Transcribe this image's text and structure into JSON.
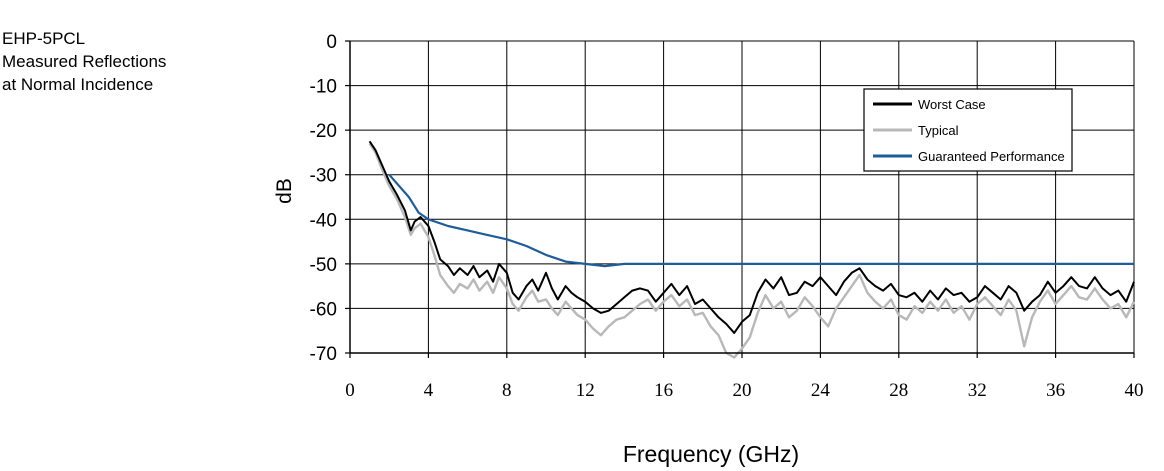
{
  "caption": {
    "line1": "EHP-5PCL",
    "line2": "Measured Reflections",
    "line3": "at Normal Incidence"
  },
  "chart_data": {
    "type": "line",
    "xlabel": "Frequency (GHz)",
    "ylabel": "dB",
    "xlim": [
      0,
      40
    ],
    "ylim": [
      -70,
      0
    ],
    "x_ticks": [
      0,
      4,
      8,
      12,
      16,
      20,
      24,
      28,
      32,
      36,
      40
    ],
    "y_ticks": [
      0,
      -10,
      -20,
      -30,
      -40,
      -50,
      -60,
      -70
    ],
    "x_tick_labels": [
      "0",
      "4",
      "8",
      "12",
      "16",
      "20",
      "24",
      "28",
      "32",
      "36",
      "40"
    ],
    "y_tick_labels": [
      "0",
      "-10",
      "-20",
      "-30",
      "-40",
      "-50",
      "-60",
      "-70"
    ],
    "grid": true,
    "legend_position": "top-right",
    "series": [
      {
        "name": "Worst Case",
        "color": "#000000",
        "x": [
          1.0,
          1.3,
          1.6,
          2.0,
          2.4,
          2.8,
          3.1,
          3.3,
          3.6,
          4.0,
          4.3,
          4.6,
          5.0,
          5.3,
          5.6,
          6.0,
          6.3,
          6.6,
          7.0,
          7.3,
          7.6,
          8.0,
          8.3,
          8.6,
          9.0,
          9.3,
          9.6,
          10.0,
          10.3,
          10.6,
          11.0,
          11.3,
          11.6,
          12.0,
          12.4,
          12.8,
          13.2,
          13.6,
          14.0,
          14.4,
          14.8,
          15.2,
          15.6,
          16.0,
          16.4,
          16.8,
          17.2,
          17.6,
          18.0,
          18.4,
          18.8,
          19.2,
          19.6,
          20.0,
          20.4,
          20.8,
          21.2,
          21.6,
          22.0,
          22.4,
          22.8,
          23.2,
          23.6,
          24.0,
          24.4,
          24.8,
          25.2,
          25.6,
          26.0,
          26.4,
          26.8,
          27.2,
          27.6,
          28.0,
          28.4,
          28.8,
          29.2,
          29.6,
          30.0,
          30.4,
          30.8,
          31.2,
          31.6,
          32.0,
          32.4,
          32.8,
          33.2,
          33.6,
          34.0,
          34.4,
          34.8,
          35.2,
          35.6,
          36.0,
          36.4,
          36.8,
          37.2,
          37.6,
          38.0,
          38.4,
          38.8,
          39.2,
          39.6,
          40.0
        ],
        "y": [
          -22.5,
          -24.5,
          -27.5,
          -31.5,
          -34.5,
          -38.0,
          -42.5,
          -40.5,
          -39.5,
          -41.5,
          -45.0,
          -49.0,
          -50.5,
          -52.5,
          -51.0,
          -52.5,
          -50.5,
          -53.0,
          -51.5,
          -54.0,
          -50.0,
          -52.0,
          -56.5,
          -58.0,
          -55.0,
          -53.5,
          -56.0,
          -52.0,
          -55.5,
          -58.0,
          -55.0,
          -56.5,
          -57.5,
          -58.5,
          -60.0,
          -61.0,
          -60.5,
          -59.0,
          -57.5,
          -56.0,
          -55.5,
          -56.0,
          -58.5,
          -56.5,
          -54.5,
          -57.0,
          -55.0,
          -59.0,
          -58.0,
          -60.0,
          -62.0,
          -63.5,
          -65.5,
          -63.0,
          -61.5,
          -56.5,
          -53.5,
          -55.5,
          -53.0,
          -57.0,
          -56.5,
          -54.0,
          -55.0,
          -53.0,
          -55.0,
          -57.0,
          -54.0,
          -52.0,
          -51.0,
          -53.5,
          -55.0,
          -56.0,
          -54.5,
          -57.0,
          -57.5,
          -56.5,
          -58.5,
          -56.0,
          -58.0,
          -55.5,
          -57.0,
          -56.5,
          -58.5,
          -57.5,
          -55.0,
          -56.5,
          -58.0,
          -55.0,
          -56.5,
          -60.5,
          -58.5,
          -57.0,
          -54.0,
          -56.5,
          -55.0,
          -53.0,
          -55.0,
          -55.5,
          -53.0,
          -55.5,
          -57.0,
          -56.0,
          -58.5,
          -54.0
        ]
      },
      {
        "name": "Typical",
        "color": "#b8b8b8",
        "x": [
          1.0,
          1.3,
          1.6,
          2.0,
          2.4,
          2.8,
          3.1,
          3.3,
          3.6,
          4.0,
          4.3,
          4.6,
          5.0,
          5.3,
          5.6,
          6.0,
          6.3,
          6.6,
          7.0,
          7.3,
          7.6,
          8.0,
          8.3,
          8.6,
          9.0,
          9.3,
          9.6,
          10.0,
          10.3,
          10.6,
          11.0,
          11.3,
          11.6,
          12.0,
          12.4,
          12.8,
          13.2,
          13.6,
          14.0,
          14.4,
          14.8,
          15.2,
          15.6,
          16.0,
          16.4,
          16.8,
          17.2,
          17.6,
          18.0,
          18.4,
          18.8,
          19.2,
          19.6,
          20.0,
          20.4,
          20.8,
          21.2,
          21.6,
          22.0,
          22.4,
          22.8,
          23.2,
          23.6,
          24.0,
          24.4,
          24.8,
          25.2,
          25.6,
          26.0,
          26.4,
          26.8,
          27.2,
          27.6,
          28.0,
          28.4,
          28.8,
          29.2,
          29.6,
          30.0,
          30.4,
          30.8,
          31.2,
          31.6,
          32.0,
          32.4,
          32.8,
          33.2,
          33.6,
          34.0,
          34.4,
          34.8,
          35.2,
          35.6,
          36.0,
          36.4,
          36.8,
          37.2,
          37.6,
          38.0,
          38.4,
          38.8,
          39.2,
          39.6,
          40.0
        ],
        "y": [
          -23.0,
          -25.0,
          -28.5,
          -32.5,
          -35.5,
          -39.5,
          -43.5,
          -42.0,
          -41.0,
          -44.0,
          -48.0,
          -52.5,
          -55.0,
          -56.5,
          -54.5,
          -55.5,
          -53.5,
          -56.0,
          -54.0,
          -56.5,
          -53.0,
          -55.5,
          -59.0,
          -60.5,
          -57.5,
          -56.0,
          -58.5,
          -58.0,
          -60.0,
          -61.5,
          -58.5,
          -60.0,
          -61.5,
          -62.5,
          -64.5,
          -66.0,
          -64.0,
          -62.5,
          -62.0,
          -60.5,
          -59.0,
          -58.0,
          -60.5,
          -58.5,
          -57.0,
          -59.5,
          -58.0,
          -61.5,
          -61.0,
          -64.0,
          -66.0,
          -70.0,
          -71.0,
          -69.0,
          -66.5,
          -61.0,
          -57.0,
          -60.0,
          -58.5,
          -62.0,
          -60.5,
          -57.5,
          -59.5,
          -62.0,
          -64.0,
          -60.0,
          -57.5,
          -55.0,
          -52.5,
          -56.5,
          -58.5,
          -60.0,
          -58.0,
          -61.5,
          -62.5,
          -59.5,
          -61.0,
          -58.5,
          -60.5,
          -58.0,
          -61.0,
          -59.5,
          -62.5,
          -59.0,
          -57.5,
          -59.5,
          -61.5,
          -58.0,
          -60.5,
          -68.5,
          -62.0,
          -58.5,
          -56.0,
          -59.0,
          -57.0,
          -55.0,
          -57.5,
          -58.0,
          -55.5,
          -58.0,
          -60.0,
          -59.0,
          -62.0,
          -58.5
        ]
      },
      {
        "name": "Guaranteed Performance",
        "color": "#1f5d99",
        "x": [
          2.0,
          3.0,
          3.5,
          4.0,
          5.0,
          6.0,
          7.0,
          8.0,
          9.0,
          10.0,
          11.0,
          12.0,
          13.0,
          14.0,
          15.0,
          20.0,
          25.0,
          30.0,
          35.0,
          40.0
        ],
        "y": [
          -30.0,
          -35.0,
          -38.5,
          -40.0,
          -41.5,
          -42.5,
          -43.5,
          -44.5,
          -46.0,
          -48.0,
          -49.5,
          -50.0,
          -50.5,
          -50.0,
          -50.0,
          -50.0,
          -50.0,
          -50.0,
          -50.0,
          -50.0
        ]
      }
    ]
  }
}
